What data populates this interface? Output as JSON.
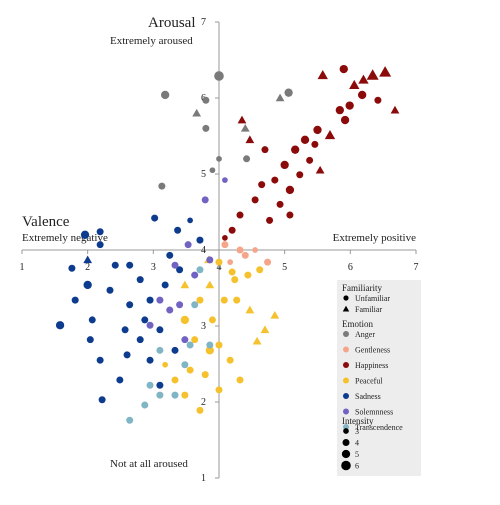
{
  "chart_data": {
    "type": "scatter",
    "ylabel": "Arousal",
    "ylabel_top": "Extremely aroused",
    "ylabel_bottom": "Not at all aroused",
    "xlabel": "Valence",
    "xlabel_left": "Extremely negative",
    "xlabel_right": "Extremely positive",
    "xlim": [
      1,
      7
    ],
    "ylim": [
      1,
      7
    ],
    "xticks": [
      1,
      2,
      3,
      4,
      5,
      6,
      7
    ],
    "yticks": [
      1,
      2,
      3,
      4,
      5,
      6,
      7
    ],
    "axis_cross": [
      4,
      4
    ],
    "legend": {
      "familiarity_title": "Familiarity",
      "familiarity": [
        "Unfamiliar",
        "Familiar"
      ],
      "emotion_title": "Emotion",
      "intensity_title": "Intensity",
      "intensity": [
        3,
        4,
        5,
        6
      ]
    },
    "series": [
      {
        "name": "Anger",
        "color": "#7a7a7a",
        "x": [
          3.18,
          4.0,
          5.06,
          3.8,
          3.8,
          3.9,
          4.42,
          3.13,
          4.93,
          3.66,
          4.4,
          4.0
        ],
        "y": [
          6.04,
          6.29,
          6.07,
          5.97,
          5.6,
          5.05,
          5.2,
          4.84,
          6.0,
          5.8,
          5.6,
          5.2
        ],
        "size": [
          5,
          6,
          5,
          4,
          4,
          3,
          4,
          4,
          4,
          4,
          4,
          3
        ],
        "familiar": [
          false,
          false,
          false,
          false,
          false,
          false,
          false,
          false,
          true,
          true,
          true,
          false
        ]
      },
      {
        "name": "Gentleness",
        "color": "#f4a58a",
        "x": [
          4.09,
          4.32,
          4.55,
          4.74,
          4.17,
          4.4
        ],
        "y": [
          4.07,
          4.0,
          4.0,
          3.84,
          3.84,
          3.93
        ],
        "size": [
          4,
          4,
          3,
          4,
          3,
          4
        ],
        "familiar": [
          false,
          false,
          false,
          false,
          false,
          false
        ]
      },
      {
        "name": "Happiness",
        "color": "#8b0a0a",
        "x": [
          5.9,
          6.53,
          6.34,
          6.2,
          6.06,
          5.58,
          6.18,
          6.42,
          5.99,
          5.84,
          5.69,
          5.5,
          5.31,
          5.16,
          5.38,
          5.0,
          5.23,
          5.54,
          5.08,
          4.85,
          4.7,
          4.47,
          4.93,
          4.77,
          4.55,
          4.32,
          4.2,
          4.09,
          5.08,
          4.65,
          5.92,
          6.68,
          5.46,
          4.35
        ],
        "y": [
          6.38,
          6.34,
          6.3,
          6.24,
          6.17,
          6.3,
          6.04,
          5.97,
          5.9,
          5.84,
          5.51,
          5.58,
          5.45,
          5.32,
          5.18,
          5.12,
          4.99,
          5.05,
          4.79,
          4.92,
          5.32,
          5.45,
          4.6,
          4.39,
          4.66,
          4.46,
          4.26,
          4.16,
          4.46,
          4.86,
          5.71,
          5.84,
          5.39,
          5.71
        ],
        "size": [
          5,
          6,
          6,
          5,
          5,
          5,
          5,
          4,
          5,
          5,
          5,
          5,
          5,
          5,
          4,
          5,
          4,
          4,
          5,
          4,
          4,
          4,
          4,
          4,
          4,
          4,
          4,
          3,
          4,
          4,
          5,
          4,
          4,
          4
        ],
        "familiar": [
          false,
          true,
          true,
          true,
          true,
          true,
          false,
          false,
          false,
          false,
          true,
          false,
          false,
          false,
          false,
          false,
          false,
          true,
          false,
          false,
          false,
          true,
          false,
          false,
          false,
          false,
          false,
          false,
          false,
          false,
          false,
          true,
          false,
          true
        ]
      },
      {
        "name": "Peaceful",
        "color": "#f5c12c",
        "x": [
          4.0,
          4.2,
          4.44,
          4.62,
          4.08,
          4.27,
          4.47,
          4.85,
          4.7,
          3.86,
          3.71,
          3.48,
          3.63,
          3.86,
          4.0,
          4.17,
          4.32,
          4.0,
          3.79,
          3.56,
          3.33,
          3.48,
          3.71,
          3.18,
          4.24,
          3.9,
          3.48,
          4.58,
          3.84
        ],
        "y": [
          3.84,
          3.71,
          3.67,
          3.74,
          3.34,
          3.34,
          3.21,
          3.14,
          2.95,
          3.54,
          3.34,
          3.08,
          2.82,
          2.68,
          2.75,
          2.55,
          2.29,
          2.16,
          2.36,
          2.42,
          2.29,
          2.09,
          1.89,
          2.49,
          3.61,
          3.08,
          3.54,
          2.8,
          3.87
        ],
        "size": [
          4,
          4,
          4,
          4,
          4,
          4,
          4,
          4,
          4,
          4,
          4,
          5,
          4,
          5,
          4,
          4,
          4,
          4,
          4,
          4,
          4,
          4,
          4,
          3,
          4,
          4,
          4,
          4,
          4
        ],
        "familiar": [
          false,
          false,
          false,
          false,
          false,
          false,
          true,
          true,
          true,
          true,
          false,
          false,
          false,
          false,
          false,
          false,
          false,
          false,
          false,
          false,
          false,
          false,
          false,
          false,
          false,
          false,
          true,
          true,
          true
        ]
      },
      {
        "name": "Sadness",
        "color": "#0d3b8e",
        "x": [
          1.96,
          2.19,
          1.76,
          2.0,
          2.34,
          1.58,
          1.81,
          2.07,
          2.04,
          2.19,
          2.22,
          2.57,
          2.8,
          2.95,
          2.6,
          3.1,
          2.49,
          2.64,
          2.8,
          2.95,
          3.02,
          3.37,
          3.56,
          3.25,
          3.4,
          3.18,
          3.71,
          2.42,
          2.64,
          2.87,
          3.1,
          3.33,
          2.0,
          2.19
        ],
        "y": [
          4.2,
          4.07,
          3.76,
          3.54,
          3.47,
          3.01,
          3.34,
          3.08,
          2.82,
          2.55,
          2.03,
          2.95,
          2.82,
          2.55,
          2.62,
          2.22,
          2.29,
          3.8,
          3.61,
          3.34,
          4.42,
          4.26,
          4.39,
          3.93,
          3.74,
          3.54,
          4.13,
          3.8,
          3.28,
          3.08,
          2.95,
          2.68,
          3.87,
          4.24
        ],
        "size": [
          5,
          4,
          4,
          5,
          4,
          5,
          4,
          4,
          4,
          4,
          4,
          4,
          4,
          4,
          4,
          4,
          4,
          4,
          4,
          4,
          4,
          4,
          3,
          4,
          4,
          4,
          4,
          4,
          4,
          4,
          4,
          4,
          4,
          4
        ],
        "familiar": [
          false,
          false,
          false,
          false,
          false,
          false,
          false,
          false,
          false,
          false,
          false,
          false,
          false,
          false,
          false,
          false,
          false,
          false,
          false,
          false,
          false,
          false,
          false,
          false,
          false,
          false,
          false,
          false,
          false,
          false,
          false,
          false,
          true,
          false
        ]
      },
      {
        "name": "Solemnness",
        "color": "#7063c2",
        "x": [
          3.79,
          3.53,
          3.33,
          3.1,
          3.25,
          3.63,
          3.86,
          2.95,
          3.48,
          3.4,
          4.09
        ],
        "y": [
          4.66,
          4.07,
          3.8,
          3.34,
          3.21,
          3.67,
          3.87,
          3.01,
          2.82,
          3.28,
          4.92
        ],
        "size": [
          4,
          4,
          4,
          4,
          4,
          4,
          4,
          4,
          4,
          4,
          3
        ],
        "familiar": [
          false,
          false,
          false,
          false,
          false,
          false,
          false,
          false,
          false,
          false,
          false
        ]
      },
      {
        "name": "Transcendence",
        "color": "#80b5c6",
        "x": [
          2.64,
          2.87,
          3.1,
          2.95,
          3.33,
          3.56,
          3.86,
          3.63,
          3.1,
          3.48,
          3.71
        ],
        "y": [
          1.76,
          1.96,
          2.09,
          2.22,
          2.09,
          2.75,
          2.75,
          3.28,
          2.68,
          2.49,
          3.74
        ],
        "size": [
          4,
          4,
          4,
          4,
          4,
          4,
          4,
          4,
          4,
          4,
          4
        ],
        "familiar": [
          false,
          false,
          false,
          false,
          false,
          false,
          false,
          false,
          false,
          false,
          false
        ]
      }
    ]
  }
}
